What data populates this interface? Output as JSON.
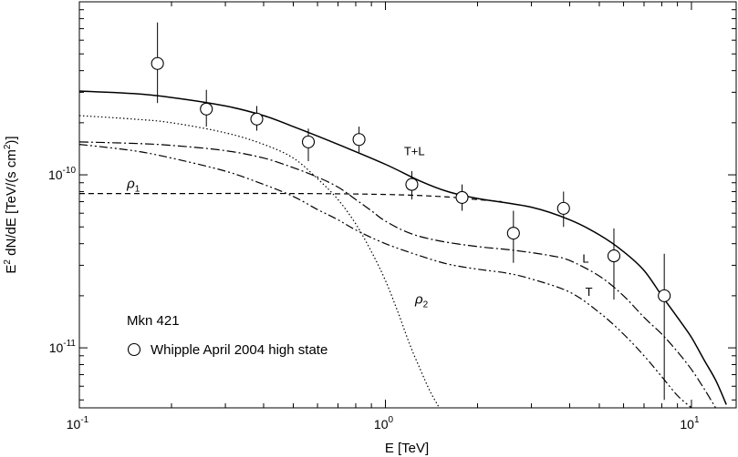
{
  "chart_data": {
    "type": "line",
    "title": "",
    "xlabel": "E [TeV]",
    "ylabel_parts": [
      "E",
      "2",
      " dN/dE [TeV/(s cm",
      "2",
      ")]"
    ],
    "x_scale": "log",
    "y_scale": "log",
    "xlim": [
      0.1,
      14.0
    ],
    "ylim": [
      4.5e-12,
      1e-09
    ],
    "grid": false,
    "x_tick_labels": [
      {
        "value": 0.1,
        "base": "10",
        "exp": "-1"
      },
      {
        "value": 1.0,
        "base": "10",
        "exp": "0"
      },
      {
        "value": 10.0,
        "base": "10",
        "exp": "1"
      }
    ],
    "y_tick_labels": [
      {
        "value": 1e-11,
        "base": "10",
        "exp": "-11"
      },
      {
        "value": 1e-10,
        "base": "10",
        "exp": "-10"
      }
    ],
    "annotations": {
      "source": "Mkn 421",
      "legend_entry": "Whipple April 2004 high state",
      "legend_marker": "open-circle"
    },
    "series": [
      {
        "name": "T+L",
        "style": "solid",
        "label_pos": [
          1.15,
          1.3e-10
        ],
        "points": [
          [
            0.1,
            3.05e-10
          ],
          [
            0.15,
            2.95e-10
          ],
          [
            0.2,
            2.8e-10
          ],
          [
            0.3,
            2.5e-10
          ],
          [
            0.4,
            2.2e-10
          ],
          [
            0.5,
            1.9e-10
          ],
          [
            0.7,
            1.5e-10
          ],
          [
            1.0,
            1.15e-10
          ],
          [
            1.3,
            9.2e-11
          ],
          [
            1.6,
            8e-11
          ],
          [
            2.0,
            7.3e-11
          ],
          [
            3.0,
            6.5e-11
          ],
          [
            4.0,
            5.5e-11
          ],
          [
            5.0,
            4.5e-11
          ],
          [
            6.0,
            3.6e-11
          ],
          [
            7.0,
            2.8e-11
          ],
          [
            8.0,
            2e-11
          ],
          [
            9.0,
            1.5e-11
          ],
          [
            10.0,
            1.15e-11
          ],
          [
            11.0,
            8.5e-12
          ],
          [
            12.0,
            6.5e-12
          ],
          [
            13.0,
            4.7e-12
          ]
        ]
      },
      {
        "name": "ρ2",
        "style": "dotted",
        "label_pos": [
          1.25,
          1.8e-11
        ],
        "points": [
          [
            0.1,
            2.2e-10
          ],
          [
            0.15,
            2.1e-10
          ],
          [
            0.2,
            2e-10
          ],
          [
            0.3,
            1.75e-10
          ],
          [
            0.4,
            1.5e-10
          ],
          [
            0.5,
            1.25e-10
          ],
          [
            0.6,
            9.5e-11
          ],
          [
            0.7,
            7.2e-11
          ],
          [
            0.8,
            5.2e-11
          ],
          [
            0.9,
            3.6e-11
          ],
          [
            1.0,
            2.45e-11
          ],
          [
            1.1,
            1.6e-11
          ],
          [
            1.2,
            1.05e-11
          ],
          [
            1.3,
            7.5e-12
          ],
          [
            1.4,
            5.6e-12
          ],
          [
            1.5,
            4.5e-12
          ]
        ]
      },
      {
        "name": "ρ1",
        "style": "dashed",
        "label_pos": [
          0.143,
          8.4e-11
        ],
        "points": [
          [
            0.1,
            7.8e-11
          ],
          [
            0.2,
            7.8e-11
          ],
          [
            0.5,
            7.8e-11
          ],
          [
            1.0,
            7.7e-11
          ],
          [
            1.5,
            7.5e-11
          ],
          [
            2.0,
            7.2e-11
          ],
          [
            2.4,
            7e-11
          ]
        ]
      },
      {
        "name": "L",
        "style": "dash-dot",
        "label_pos": [
          4.4,
          3.1e-11
        ],
        "points": [
          [
            0.1,
            1.55e-10
          ],
          [
            0.15,
            1.52e-10
          ],
          [
            0.2,
            1.48e-10
          ],
          [
            0.3,
            1.38e-10
          ],
          [
            0.4,
            1.25e-10
          ],
          [
            0.5,
            1.1e-10
          ],
          [
            0.6,
            9.7e-11
          ],
          [
            0.7,
            8.5e-11
          ],
          [
            0.8,
            7.2e-11
          ],
          [
            0.9,
            6.2e-11
          ],
          [
            1.0,
            5.4e-11
          ],
          [
            1.2,
            4.6e-11
          ],
          [
            1.5,
            4.15e-11
          ],
          [
            2.0,
            3.85e-11
          ],
          [
            2.5,
            3.7e-11
          ],
          [
            3.0,
            3.55e-11
          ],
          [
            3.5,
            3.4e-11
          ],
          [
            4.0,
            3.2e-11
          ],
          [
            5.0,
            2.6e-11
          ],
          [
            6.0,
            2e-11
          ],
          [
            7.0,
            1.5e-11
          ],
          [
            8.0,
            1.2e-11
          ],
          [
            9.0,
            9.5e-12
          ],
          [
            10.0,
            7.5e-12
          ],
          [
            11.0,
            5.8e-12
          ],
          [
            12.0,
            4.5e-12
          ]
        ]
      },
      {
        "name": "T",
        "style": "dash-dot-dot",
        "label_pos": [
          4.5,
          2e-11
        ],
        "points": [
          [
            0.1,
            1.5e-10
          ],
          [
            0.15,
            1.38e-10
          ],
          [
            0.2,
            1.25e-10
          ],
          [
            0.3,
            1.05e-10
          ],
          [
            0.4,
            8.8e-11
          ],
          [
            0.5,
            7.5e-11
          ],
          [
            0.6,
            6.3e-11
          ],
          [
            0.7,
            5.5e-11
          ],
          [
            0.8,
            4.8e-11
          ],
          [
            1.0,
            4e-11
          ],
          [
            1.3,
            3.4e-11
          ],
          [
            1.6,
            3.05e-11
          ],
          [
            2.0,
            2.85e-11
          ],
          [
            2.5,
            2.7e-11
          ],
          [
            3.0,
            2.5e-11
          ],
          [
            4.0,
            2.1e-11
          ],
          [
            5.0,
            1.6e-11
          ],
          [
            6.0,
            1.2e-11
          ],
          [
            7.0,
            9e-12
          ],
          [
            8.0,
            6.8e-12
          ],
          [
            9.0,
            5.3e-12
          ],
          [
            10.0,
            4.5e-12
          ]
        ]
      }
    ],
    "data_points": [
      {
        "x": 0.18,
        "y": 4.4e-10,
        "ylo": 2.6e-10,
        "yhi": 7.6e-10
      },
      {
        "x": 0.26,
        "y": 2.4e-10,
        "ylo": 1.9e-10,
        "yhi": 3.1e-10
      },
      {
        "x": 0.38,
        "y": 2.1e-10,
        "ylo": 1.8e-10,
        "yhi": 2.5e-10
      },
      {
        "x": 0.56,
        "y": 1.55e-10,
        "ylo": 1.2e-10,
        "yhi": 1.85e-10
      },
      {
        "x": 0.82,
        "y": 1.6e-10,
        "ylo": 1.35e-10,
        "yhi": 1.9e-10
      },
      {
        "x": 1.22,
        "y": 8.8e-11,
        "ylo": 7.2e-11,
        "yhi": 1.05e-10
      },
      {
        "x": 1.78,
        "y": 7.4e-11,
        "ylo": 6.2e-11,
        "yhi": 8.8e-11
      },
      {
        "x": 2.62,
        "y": 4.6e-11,
        "ylo": 3.1e-11,
        "yhi": 6.2e-11
      },
      {
        "x": 3.82,
        "y": 6.4e-11,
        "ylo": 5e-11,
        "yhi": 8e-11
      },
      {
        "x": 5.58,
        "y": 3.4e-11,
        "ylo": 1.9e-11,
        "yhi": 4.9e-11
      },
      {
        "x": 8.15,
        "y": 2e-11,
        "ylo": 5e-12,
        "yhi": 3.5e-11
      }
    ]
  }
}
